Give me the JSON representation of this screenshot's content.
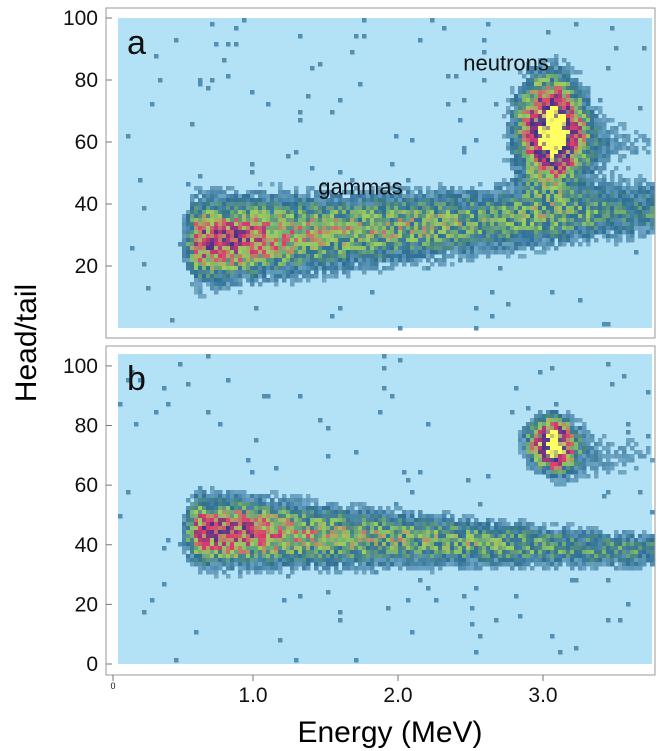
{
  "chart_data": {
    "type": "heatmap",
    "xlabel": "Energy (MeV)",
    "ylabel": "Head/tail",
    "xlim": [
      0,
      3.7
    ],
    "x_ticks": [
      {
        "value": 0,
        "label": "0"
      },
      {
        "value": 1.0,
        "label": "1.0"
      },
      {
        "value": 2.0,
        "label": "2.0"
      },
      {
        "value": 3.0,
        "label": "3.0"
      }
    ],
    "colors": {
      "background": "#b3e1f5",
      "low": "#2d6e95",
      "scale": [
        "#b3e1f5",
        "#2d6e95",
        "#9ccf60",
        "#dc3c6e",
        "#3c328c",
        "#ffff64"
      ]
    },
    "panels": [
      {
        "label": "a",
        "ylim": [
          0,
          100
        ],
        "y_ticks": [
          {
            "value": 20,
            "label": "20"
          },
          {
            "value": 40,
            "label": "40"
          },
          {
            "value": 60,
            "label": "60"
          },
          {
            "value": 80,
            "label": "80"
          },
          {
            "value": 100,
            "label": "100"
          }
        ],
        "annotations": [
          {
            "text": "gammas",
            "x": 1.45,
            "y": 43
          },
          {
            "text": "neutrons",
            "x": 2.45,
            "y": 83
          }
        ],
        "clusters": [
          {
            "name": "gammas",
            "energy_range": [
              0.55,
              3.7
            ],
            "head_tail_center": [
              28,
              38
            ],
            "peak": [
              0.8,
              28
            ]
          },
          {
            "name": "neutrons",
            "energy_center": 3.05,
            "head_tail_center": 64,
            "peak": [
              3.05,
              64
            ]
          }
        ]
      },
      {
        "label": "b",
        "ylim": [
          0,
          104
        ],
        "y_ticks": [
          {
            "value": 0,
            "label": "0"
          },
          {
            "value": 20,
            "label": "20"
          },
          {
            "value": 40,
            "label": "40"
          },
          {
            "value": 60,
            "label": "60"
          },
          {
            "value": 80,
            "label": "80"
          },
          {
            "value": 100,
            "label": "100"
          }
        ],
        "annotations": [],
        "clusters": [
          {
            "name": "gammas",
            "energy_range": [
              0.55,
              3.7
            ],
            "head_tail_center": [
              45,
              38
            ],
            "peak": [
              0.8,
              44
            ]
          },
          {
            "name": "neutrons",
            "energy_center": 3.05,
            "head_tail_center": 74,
            "peak": [
              3.05,
              74
            ]
          }
        ]
      }
    ]
  }
}
